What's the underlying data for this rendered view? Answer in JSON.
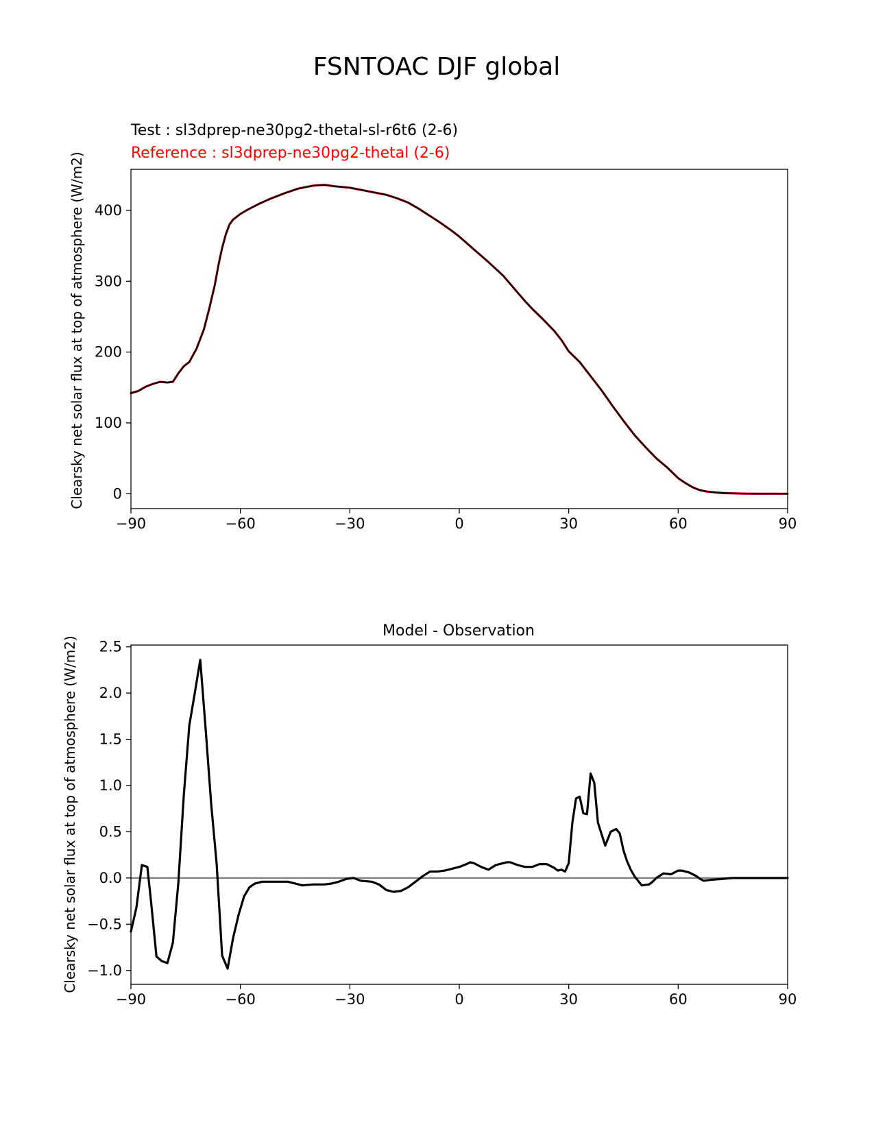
{
  "figure": {
    "title": "FSNTOAC DJF global"
  },
  "colors": {
    "test": "#000000",
    "reference": "#ff0000",
    "difference": "#000000",
    "zero_line": "#808080"
  },
  "chart_data": [
    {
      "type": "line",
      "test_label": "Test : sl3dprep-ne30pg2-thetal-sl-r6t6 (2-6)",
      "reference_label": "Reference : sl3dprep-ne30pg2-thetal (2-6)",
      "ylabel": "Clearsky net solar flux at top of atmosphere (W/m2)",
      "xlim": [
        -90,
        90
      ],
      "ylim": [
        -21,
        458
      ],
      "xticks": [
        -90,
        -60,
        -30,
        0,
        30,
        60,
        90
      ],
      "xtick_labels": [
        "−90",
        "−60",
        "−30",
        "0",
        "30",
        "60",
        "90"
      ],
      "yticks": [
        0,
        100,
        200,
        300,
        400
      ],
      "ytick_labels": [
        "0",
        "100",
        "200",
        "300",
        "400"
      ],
      "grid": false,
      "series": [
        {
          "role": "reference",
          "x": [
            -90,
            -88,
            -86,
            -84,
            -82,
            -80,
            -78.5,
            -77,
            -75.5,
            -74,
            -72,
            -70,
            -68.5,
            -67,
            -66,
            -65,
            -64,
            -63,
            -62,
            -60,
            -58,
            -55,
            -52,
            -48,
            -44,
            -40,
            -37,
            -34,
            -30,
            -27,
            -24,
            -20,
            -17,
            -14,
            -11,
            -8,
            -5,
            -2,
            0,
            4,
            8,
            12,
            15,
            18,
            20,
            23,
            26,
            28,
            30,
            33,
            36,
            39,
            42,
            45,
            48,
            51,
            54,
            57,
            60,
            62,
            64,
            66,
            68,
            70,
            72,
            75,
            78,
            82,
            86,
            90
          ],
          "y": [
            142,
            145,
            151,
            155,
            158,
            157,
            158,
            170,
            180,
            186,
            205,
            232,
            262,
            295,
            323,
            347,
            366,
            380,
            387,
            395,
            401,
            409,
            416,
            424,
            431,
            435,
            436,
            434,
            432,
            429,
            426,
            422,
            417,
            411,
            402,
            392,
            382,
            371,
            363,
            345,
            327,
            308,
            290,
            272,
            261,
            246,
            230,
            217,
            201,
            186,
            166,
            146,
            124,
            103,
            83,
            66,
            50,
            37,
            22,
            15,
            9,
            5,
            3,
            2,
            1,
            0.5,
            0.2,
            0,
            0,
            0
          ]
        },
        {
          "role": "test",
          "x": [
            -90,
            -88,
            -86,
            -84,
            -82,
            -80,
            -78.5,
            -77,
            -75.5,
            -74,
            -72,
            -70,
            -68.5,
            -67,
            -66,
            -65,
            -64,
            -63,
            -62,
            -60,
            -58,
            -55,
            -52,
            -48,
            -44,
            -40,
            -37,
            -34,
            -30,
            -27,
            -24,
            -20,
            -17,
            -14,
            -11,
            -8,
            -5,
            -2,
            0,
            4,
            8,
            12,
            15,
            18,
            20,
            23,
            26,
            28,
            30,
            33,
            36,
            39,
            42,
            45,
            48,
            51,
            54,
            57,
            60,
            62,
            64,
            66,
            68,
            70,
            72,
            75,
            78,
            82,
            86,
            90
          ],
          "y": [
            142,
            145,
            151,
            155,
            158,
            157,
            158,
            170,
            180,
            186,
            205,
            232,
            262,
            295,
            323,
            347,
            366,
            380,
            387,
            395,
            401,
            409,
            416,
            424,
            431,
            435,
            436,
            434,
            432,
            429,
            426,
            422,
            417,
            411,
            402,
            392,
            382,
            371,
            363,
            345,
            327,
            308,
            290,
            272,
            261,
            246,
            230,
            217,
            201,
            186,
            166,
            146,
            124,
            103,
            83,
            66,
            50,
            37,
            22,
            15,
            9,
            5,
            3,
            2,
            1,
            0.5,
            0.2,
            0,
            0,
            0
          ]
        }
      ]
    },
    {
      "type": "line",
      "title": "Model - Observation",
      "ylabel": "Clearsky net solar flux at top of atmosphere (W/m2)",
      "xlim": [
        -90,
        90
      ],
      "ylim": [
        -1.15,
        2.52
      ],
      "xticks": [
        -90,
        -60,
        -30,
        0,
        30,
        60,
        90
      ],
      "xtick_labels": [
        "−90",
        "−60",
        "−30",
        "0",
        "30",
        "60",
        "90"
      ],
      "yticks": [
        -1.0,
        -0.5,
        0.0,
        0.5,
        1.0,
        1.5,
        2.0,
        2.5
      ],
      "ytick_labels": [
        "−1.0",
        "−0.5",
        "0.0",
        "0.5",
        "1.0",
        "1.5",
        "2.0",
        "2.5"
      ],
      "grid": false,
      "zero_line": true,
      "series": [
        {
          "role": "difference",
          "x": [
            -90,
            -88.5,
            -87,
            -85.5,
            -84.5,
            -83,
            -81.5,
            -80,
            -78.5,
            -77,
            -75.5,
            -74,
            -72.5,
            -71,
            -69.5,
            -68,
            -66.5,
            -65,
            -63.5,
            -62,
            -60.5,
            -59,
            -57.5,
            -56,
            -54,
            -50,
            -47,
            -45,
            -43,
            -40,
            -37,
            -35,
            -33,
            -31,
            -29,
            -27,
            -24,
            -22,
            -20,
            -18,
            -16,
            -14,
            -12,
            -10,
            -8,
            -6,
            -4,
            -2,
            0,
            2,
            3,
            4,
            6,
            8,
            10,
            12,
            13,
            14,
            16,
            18,
            20,
            22,
            24,
            26,
            27,
            28,
            29,
            30,
            31,
            32,
            33,
            34,
            35,
            36,
            37,
            38,
            40,
            41.5,
            43,
            44,
            45,
            46,
            47,
            48,
            50,
            52,
            53,
            54,
            56,
            58,
            60,
            61,
            63,
            65,
            66,
            67,
            69,
            72,
            75,
            80,
            85,
            90
          ],
          "y": [
            -0.58,
            -0.32,
            0.14,
            0.12,
            -0.25,
            -0.85,
            -0.9,
            -0.92,
            -0.7,
            -0.05,
            0.9,
            1.65,
            2.0,
            2.36,
            1.6,
            0.8,
            0.15,
            -0.84,
            -0.98,
            -0.65,
            -0.4,
            -0.2,
            -0.1,
            -0.06,
            -0.04,
            -0.04,
            -0.04,
            -0.06,
            -0.08,
            -0.07,
            -0.07,
            -0.06,
            -0.04,
            -0.01,
            0.0,
            -0.03,
            -0.04,
            -0.07,
            -0.13,
            -0.15,
            -0.14,
            -0.1,
            -0.04,
            0.02,
            0.07,
            0.07,
            0.08,
            0.1,
            0.12,
            0.15,
            0.17,
            0.16,
            0.12,
            0.09,
            0.14,
            0.16,
            0.17,
            0.17,
            0.14,
            0.12,
            0.12,
            0.15,
            0.15,
            0.11,
            0.08,
            0.09,
            0.07,
            0.16,
            0.6,
            0.86,
            0.88,
            0.7,
            0.69,
            1.13,
            1.03,
            0.6,
            0.35,
            0.5,
            0.53,
            0.48,
            0.3,
            0.18,
            0.09,
            0.02,
            -0.08,
            -0.07,
            -0.04,
            0.0,
            0.05,
            0.04,
            0.08,
            0.08,
            0.06,
            0.02,
            -0.01,
            -0.03,
            -0.02,
            -0.01,
            0.0,
            0.0,
            0.0,
            0.0
          ]
        }
      ]
    }
  ]
}
